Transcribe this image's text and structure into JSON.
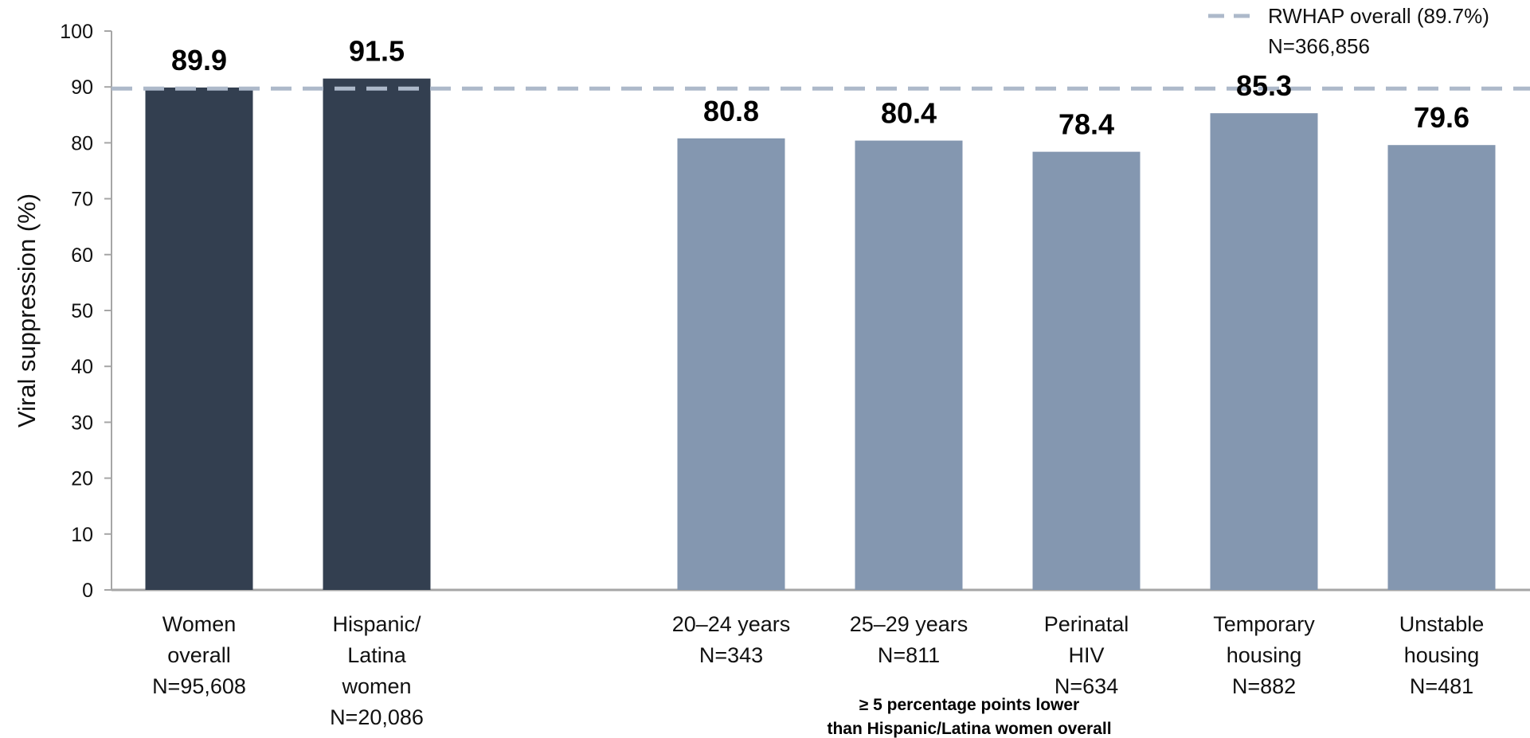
{
  "chart_data": {
    "type": "bar",
    "ylabel": "Viral suppression (%)",
    "ylim": [
      0,
      100
    ],
    "yticks": [
      0,
      10,
      20,
      30,
      40,
      50,
      60,
      70,
      80,
      90,
      100
    ],
    "grid": false,
    "categories": [
      {
        "lines": [
          "Women",
          "overall",
          "N=95,608"
        ],
        "value": 89.9,
        "label": "89.9",
        "group": "overall"
      },
      {
        "lines": [
          "Hispanic/",
          "Latina",
          "women",
          "N=20,086"
        ],
        "value": 91.5,
        "label": "91.5",
        "group": "overall"
      },
      {
        "lines": [
          "20–24 years",
          "N=343"
        ],
        "value": 80.8,
        "label": "80.8",
        "group": "subgroup"
      },
      {
        "lines": [
          "25–29 years",
          "N=811"
        ],
        "value": 80.4,
        "label": "80.4",
        "group": "subgroup"
      },
      {
        "lines": [
          "Perinatal",
          "HIV",
          "N=634"
        ],
        "value": 78.4,
        "label": "78.4",
        "group": "subgroup"
      },
      {
        "lines": [
          "Temporary",
          "housing",
          "N=882"
        ],
        "value": 85.3,
        "label": "85.3",
        "group": "subgroup"
      },
      {
        "lines": [
          "Unstable",
          "housing",
          "N=481"
        ],
        "value": 79.6,
        "label": "79.6",
        "group": "subgroup"
      }
    ],
    "reference_line": {
      "value": 89.7,
      "legend_lines": [
        "RWHAP overall (89.7%)",
        "N=366,856"
      ],
      "style": "dashed"
    },
    "legend_position": "top-right",
    "annotation_lines": [
      "≥ 5 percentage points lower",
      "than Hispanic/Latina women overall"
    ],
    "colors": {
      "overall": "#333f50",
      "subgroup": "#8497b0",
      "reference": "#adb9ca",
      "axis": "#a6a6a6"
    }
  }
}
